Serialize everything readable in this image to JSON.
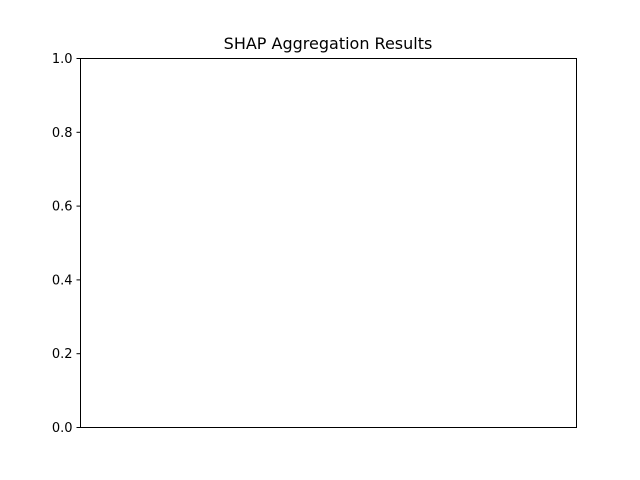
{
  "chart_data": {
    "type": "bar",
    "title": "SHAP Aggregation Results",
    "xlabel": "",
    "ylabel": "",
    "categories": [],
    "values": [],
    "ylim": [
      0.0,
      1.0
    ],
    "yticks": [
      "0.0",
      "0.2",
      "0.4",
      "0.6",
      "0.8",
      "1.0"
    ],
    "xticks": [],
    "grid": false,
    "legend": "none",
    "colors": {
      "frame": "#000000",
      "background": "#ffffff",
      "text": "#000000"
    }
  }
}
